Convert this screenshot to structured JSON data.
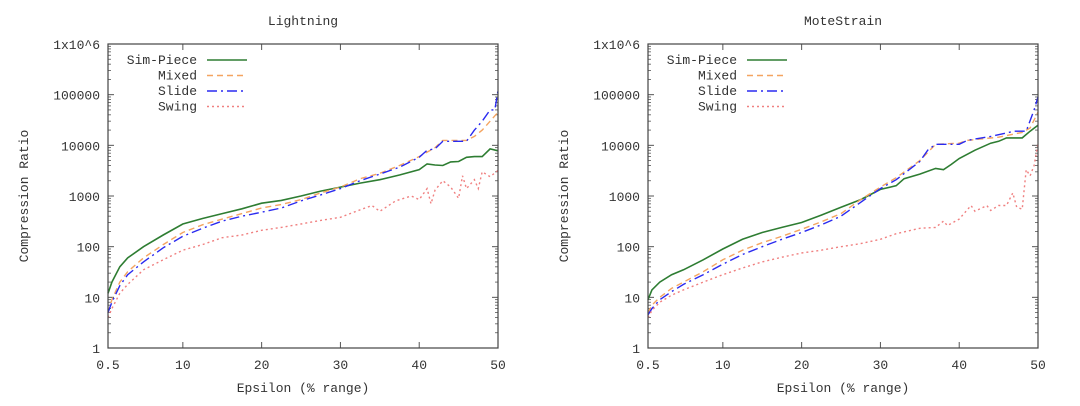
{
  "chart_data": [
    {
      "type": "line",
      "title": "Lightning",
      "xlabel": "Epsilon (% range)",
      "ylabel": "Compression Ratio",
      "xlim": [
        0.5,
        50
      ],
      "ylim": [
        1,
        1000000
      ],
      "yscale": "log",
      "grid": false,
      "legend_position": "top-left",
      "x_ticks": [
        0.5,
        10,
        20,
        30,
        40,
        50
      ],
      "x_tick_labels": [
        "0.5",
        "10",
        "20",
        "30",
        "40",
        "50"
      ],
      "y_ticks": [
        1,
        10,
        100,
        1000,
        10000,
        100000,
        1000000
      ],
      "y_tick_labels": [
        "1",
        "10",
        "100",
        "1000",
        "10000",
        "100000",
        "1x10^6"
      ],
      "series": [
        {
          "name": "Sim-Piece",
          "color": "#2e7d32",
          "dash": "solid",
          "x": [
            0.5,
            1,
            2,
            3,
            5,
            7.5,
            10,
            12.5,
            15,
            17.5,
            20,
            22.5,
            25,
            27.5,
            30,
            32.5,
            35,
            37.5,
            40,
            41,
            42,
            43,
            44,
            45,
            46,
            47,
            48,
            49,
            50
          ],
          "y": [
            12,
            20,
            40,
            60,
            100,
            170,
            280,
            360,
            450,
            560,
            720,
            820,
            1000,
            1250,
            1500,
            1800,
            2100,
            2600,
            3300,
            4300,
            4100,
            4000,
            4700,
            4800,
            5800,
            6000,
            6000,
            8500,
            7800
          ]
        },
        {
          "name": "Mixed",
          "color": "#f4a460",
          "dash": "dashed",
          "x": [
            0.5,
            1,
            2,
            3,
            5,
            7.5,
            10,
            12.5,
            15,
            17.5,
            20,
            22.5,
            25,
            27.5,
            30,
            32.5,
            35,
            37.5,
            40,
            42,
            43,
            46,
            47,
            48,
            49,
            50
          ],
          "y": [
            5,
            9,
            20,
            32,
            60,
            110,
            190,
            270,
            350,
            450,
            580,
            680,
            850,
            1150,
            1500,
            2200,
            2800,
            4000,
            6000,
            9000,
            12500,
            12500,
            15000,
            20000,
            30000,
            45000
          ]
        },
        {
          "name": "Slide",
          "color": "#2a2af0",
          "dash": "dashdot",
          "x": [
            0.5,
            1,
            2,
            3,
            5,
            7.5,
            10,
            12.5,
            15,
            17.5,
            20,
            22.5,
            25,
            27.5,
            30,
            32.5,
            35,
            37.5,
            40,
            41,
            42,
            43,
            46,
            47,
            48,
            49,
            49.6,
            50
          ],
          "y": [
            5,
            8,
            17,
            28,
            50,
            95,
            160,
            230,
            320,
            400,
            480,
            580,
            800,
            1050,
            1400,
            2000,
            2700,
            3700,
            5800,
            8000,
            8500,
            12000,
            12000,
            20000,
            30000,
            50000,
            50000,
            120000
          ]
        },
        {
          "name": "Swing",
          "color": "#f08080",
          "dash": "dotted",
          "x": [
            0.5,
            1,
            2,
            3,
            5,
            7.5,
            10,
            12.5,
            15,
            17.5,
            20,
            22.5,
            25,
            27.5,
            30,
            32,
            34,
            35,
            37,
            39,
            40,
            41,
            41.5,
            42,
            43,
            44,
            45,
            45.5,
            46,
            47,
            47.5,
            48,
            49,
            50
          ],
          "y": [
            4,
            6,
            12,
            18,
            35,
            55,
            85,
            110,
            150,
            170,
            210,
            240,
            280,
            330,
            380,
            500,
            650,
            500,
            800,
            1000,
            850,
            1400,
            700,
            1300,
            2000,
            1500,
            900,
            2500,
            1400,
            2100,
            1400,
            3000,
            2400,
            3200
          ]
        }
      ]
    },
    {
      "type": "line",
      "title": "MoteStrain",
      "xlabel": "Epsilon (% range)",
      "ylabel": "Compression Ratio",
      "xlim": [
        0.5,
        50
      ],
      "ylim": [
        1,
        1000000
      ],
      "yscale": "log",
      "grid": false,
      "legend_position": "top-left",
      "x_ticks": [
        0.5,
        10,
        20,
        30,
        40,
        50
      ],
      "x_tick_labels": [
        "0.5",
        "10",
        "20",
        "30",
        "40",
        "50"
      ],
      "y_ticks": [
        1,
        10,
        100,
        1000,
        10000,
        100000,
        1000000
      ],
      "y_tick_labels": [
        "1",
        "10",
        "100",
        "1000",
        "10000",
        "100000",
        "1x10^6"
      ],
      "series": [
        {
          "name": "Sim-Piece",
          "color": "#2e7d32",
          "dash": "solid",
          "x": [
            0.5,
            1,
            2,
            3.5,
            5,
            7.5,
            10,
            12.5,
            15,
            17.5,
            20,
            22.5,
            25,
            27.5,
            30,
            32,
            33,
            35,
            37,
            38,
            39,
            40,
            42,
            44,
            45,
            46,
            48,
            49,
            50
          ],
          "y": [
            9,
            14,
            20,
            28,
            35,
            55,
            90,
            140,
            190,
            240,
            300,
            420,
            600,
            850,
            1350,
            1600,
            2200,
            2700,
            3500,
            3300,
            4200,
            5500,
            8000,
            11000,
            12000,
            14000,
            14000,
            19000,
            25000
          ]
        },
        {
          "name": "Mixed",
          "color": "#f4a460",
          "dash": "dashed",
          "x": [
            0.5,
            1,
            2,
            3.5,
            5,
            7.5,
            10,
            12.5,
            15,
            17.5,
            20,
            22.5,
            25,
            27.5,
            30,
            32,
            35,
            37,
            40,
            41,
            45,
            48,
            49,
            50
          ],
          "y": [
            5,
            7,
            10,
            15,
            20,
            32,
            55,
            85,
            120,
            160,
            220,
            310,
            450,
            850,
            1500,
            2300,
            5000,
            10500,
            11000,
            12500,
            14500,
            18000,
            22000,
            45000
          ]
        },
        {
          "name": "Slide",
          "color": "#2a2af0",
          "dash": "dashdot",
          "x": [
            0.5,
            1,
            2,
            3.5,
            5,
            7.5,
            10,
            12.5,
            15,
            17.5,
            20,
            22.5,
            25,
            27.5,
            30,
            32,
            35,
            36,
            37,
            40,
            41,
            44,
            47,
            48.5,
            49.5,
            50
          ],
          "y": [
            4.5,
            6,
            9,
            13,
            18,
            28,
            45,
            70,
            100,
            140,
            190,
            270,
            400,
            750,
            1400,
            2100,
            4800,
            8000,
            10500,
            10500,
            12500,
            15000,
            19000,
            19000,
            50000,
            90000
          ]
        },
        {
          "name": "Swing",
          "color": "#f08080",
          "dash": "dotted",
          "x": [
            0.5,
            1,
            2,
            3.5,
            5,
            7.5,
            10,
            12.5,
            15,
            17.5,
            20,
            22.5,
            25,
            27.5,
            30,
            32,
            35,
            37,
            38,
            38.5,
            40,
            41.5,
            42,
            43.5,
            44,
            45,
            46,
            46.8,
            47.3,
            48,
            48.5,
            49,
            49.5,
            50
          ],
          "y": [
            4,
            5.5,
            8,
            11,
            14,
            20,
            28,
            38,
            50,
            62,
            75,
            85,
            100,
            115,
            140,
            180,
            230,
            240,
            320,
            260,
            350,
            650,
            500,
            650,
            520,
            650,
            650,
            1150,
            600,
            550,
            3300,
            2500,
            4000,
            11000
          ]
        }
      ]
    }
  ]
}
